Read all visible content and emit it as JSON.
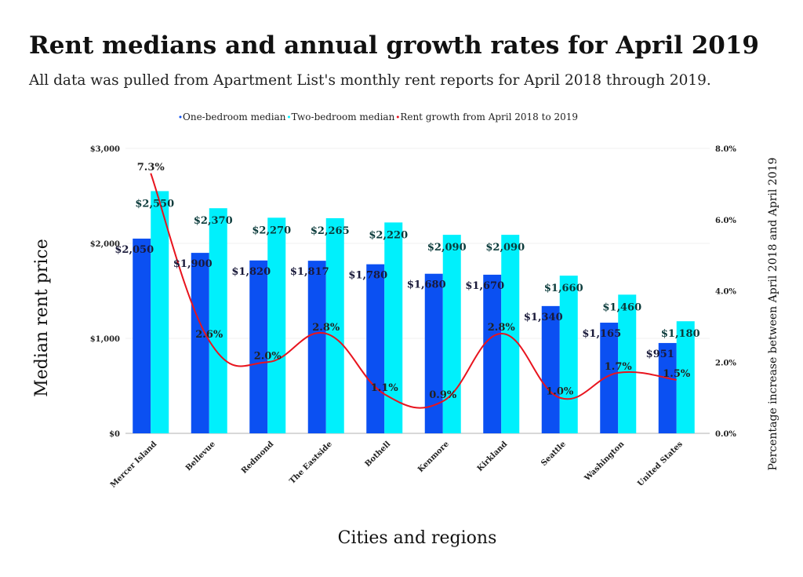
{
  "title": "Rent medians and annual growth rates for April 2019",
  "subtitle": "All data was pulled from Apartment List's monthly rent reports for April 2018 through 2019.",
  "chart_data": {
    "type": "bar+line",
    "categories": [
      "Mercer Island",
      "Bellevue",
      "Redmond",
      "The Eastside",
      "Bothell",
      "Kenmore",
      "Kirkland",
      "Seattle",
      "Washington",
      "United States"
    ],
    "series": [
      {
        "name": "One-bedroom median",
        "type": "bar",
        "axis": "left",
        "color": "#0b50f2",
        "values": [
          2050,
          1900,
          1820,
          1817,
          1780,
          1680,
          1670,
          1340,
          1165,
          951
        ],
        "labels": [
          "$2,050",
          "$1,900",
          "$1,820",
          "$1,817",
          "$1,780",
          "$1,680",
          "$1,670",
          "$1,340",
          "$1,165",
          "$951"
        ]
      },
      {
        "name": "Two-bedroom median",
        "type": "bar",
        "axis": "left",
        "color": "#00f0fc",
        "values": [
          2550,
          2370,
          2270,
          2265,
          2220,
          2090,
          2090,
          1660,
          1460,
          1180
        ],
        "labels": [
          "$2,550",
          "$2,370",
          "$2,270",
          "$2,265",
          "$2,220",
          "$2,090",
          "$2,090",
          "$1,660",
          "$1,460",
          "$1,180"
        ]
      },
      {
        "name": "Rent growth from April 2018 to 2019",
        "type": "line",
        "axis": "right",
        "color": "#e8141e",
        "values": [
          7.3,
          2.6,
          2.0,
          2.8,
          1.1,
          0.9,
          2.8,
          1.0,
          1.7,
          1.5
        ],
        "labels": [
          "7.3%",
          "2.6%",
          "2.0%",
          "2.8%",
          "1.1%",
          "0.9%",
          "2.8%",
          "1.0%",
          "1.7%",
          "1.5%"
        ]
      }
    ],
    "xlabel": "Cities and regions",
    "ylabel": "Median rent price",
    "y2label": "Percentage increase between April 2018 and April 2019",
    "ylim": [
      0,
      3000
    ],
    "y2lim": [
      0,
      8
    ],
    "yticks": [
      "$0",
      "$1,000",
      "$2,000",
      "$3,000"
    ],
    "y2ticks": [
      "0.0%",
      "2.0%",
      "4.0%",
      "6.0%",
      "8.0%"
    ],
    "grid": true,
    "legend": "top-center"
  }
}
